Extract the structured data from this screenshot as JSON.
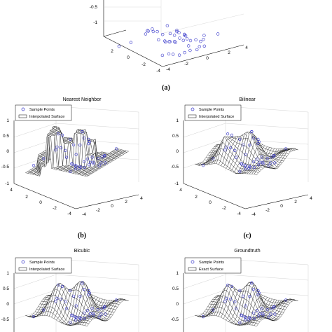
{
  "captions": [
    "(a)",
    "(b)",
    "(c)"
  ],
  "chart_data": [
    {
      "id": "a",
      "type": "scatter",
      "title": "",
      "ztick_labels": [
        "-0.5",
        "-1"
      ],
      "x_tick_labels": [
        "2",
        "0",
        "-2",
        "-4"
      ],
      "y_tick_labels": [
        "4",
        "2",
        "0",
        "-2",
        "-4"
      ],
      "series": [
        {
          "marker": "circle",
          "color": "#3030c8"
        }
      ]
    },
    {
      "id": "b",
      "type": "surface",
      "title": "Nearest Neighbor",
      "legend": [
        "Sample Points",
        "Interpolated Surface"
      ],
      "legend_position": "top-left",
      "zlim": [
        -1,
        1
      ],
      "zticks": [
        "1",
        "0.5",
        "0",
        "-0.5",
        "-1"
      ],
      "x_tick_labels": [
        "4",
        "2",
        "0",
        "-2",
        "-4"
      ],
      "y_tick_labels": [
        "4",
        "2",
        "0",
        "-2",
        "-4"
      ],
      "method": "nearest"
    },
    {
      "id": "c",
      "type": "surface",
      "title": "Bilinear",
      "legend": [
        "Sample Points",
        "Interpolated Surface"
      ],
      "legend_position": "top-left",
      "zlim": [
        -1,
        1
      ],
      "zticks": [
        "1",
        "0.5",
        "0",
        "-0.5",
        "-1"
      ],
      "x_tick_labels": [
        "4",
        "2",
        "0",
        "-2",
        "-4"
      ],
      "y_tick_labels": [
        "4",
        "2",
        "0",
        "-2",
        "-4"
      ],
      "method": "bilinear"
    },
    {
      "id": "d",
      "type": "surface",
      "title": "Bicubic",
      "legend": [
        "Sample Points",
        "Interpolated Surface"
      ],
      "legend_position": "top-left",
      "zticks": [
        "1",
        "0.5",
        "0",
        "-0.5"
      ],
      "method": "bicubic"
    },
    {
      "id": "e",
      "type": "surface",
      "title": "Groundtruth",
      "legend": [
        "Sample Points",
        "Exact Surface"
      ],
      "legend_position": "top-left",
      "zticks": [
        "1",
        "0.5",
        "0",
        "-0.5"
      ],
      "method": "exact"
    }
  ],
  "colors": {
    "marker": "#3030c8",
    "mesh": "#111111",
    "axes": "#000000",
    "grid": "#c8c8c8"
  }
}
